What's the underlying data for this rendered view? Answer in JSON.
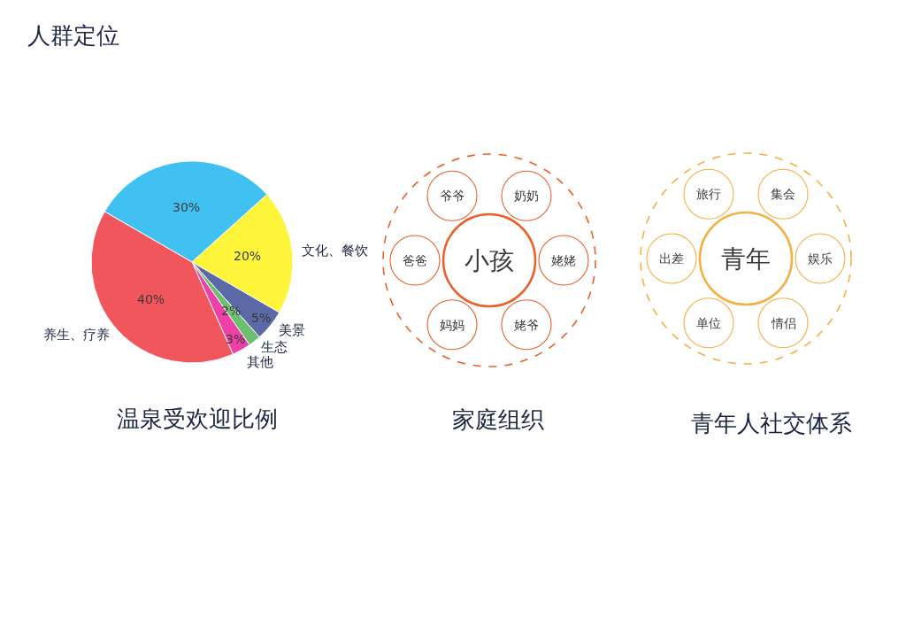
{
  "chart_data": [
    {
      "type": "pie",
      "title": "温泉受欢迎比例",
      "annotations": [
        "人群定位"
      ],
      "categories": [
        null,
        "文化、餐饮",
        "美景",
        "生态",
        "其他",
        "养生、疗养"
      ],
      "values": [
        30,
        20,
        5,
        2,
        3,
        40
      ],
      "value_labels": [
        "30%",
        "20%",
        "5%",
        "2%",
        "3%",
        "40%"
      ],
      "colors": [
        "#40c1f1",
        "#fef43a",
        "#5b69a6",
        "#6cbf6e",
        "#ee40a6",
        "#f2565d"
      ]
    },
    {
      "type": "other",
      "title": "家庭组织",
      "annotations": [
        "小孩"
      ],
      "categories": [
        "爷爷",
        "奶奶",
        "姥姥",
        "姥爷",
        "妈妈",
        "爸爸"
      ],
      "color": "#e9612b"
    },
    {
      "type": "other",
      "title": "青年人社交体系",
      "annotations": [
        "青年"
      ],
      "categories": [
        "旅行",
        "集会",
        "娱乐",
        "情侣",
        "单位",
        "出差"
      ],
      "color": "#f5b043"
    }
  ]
}
